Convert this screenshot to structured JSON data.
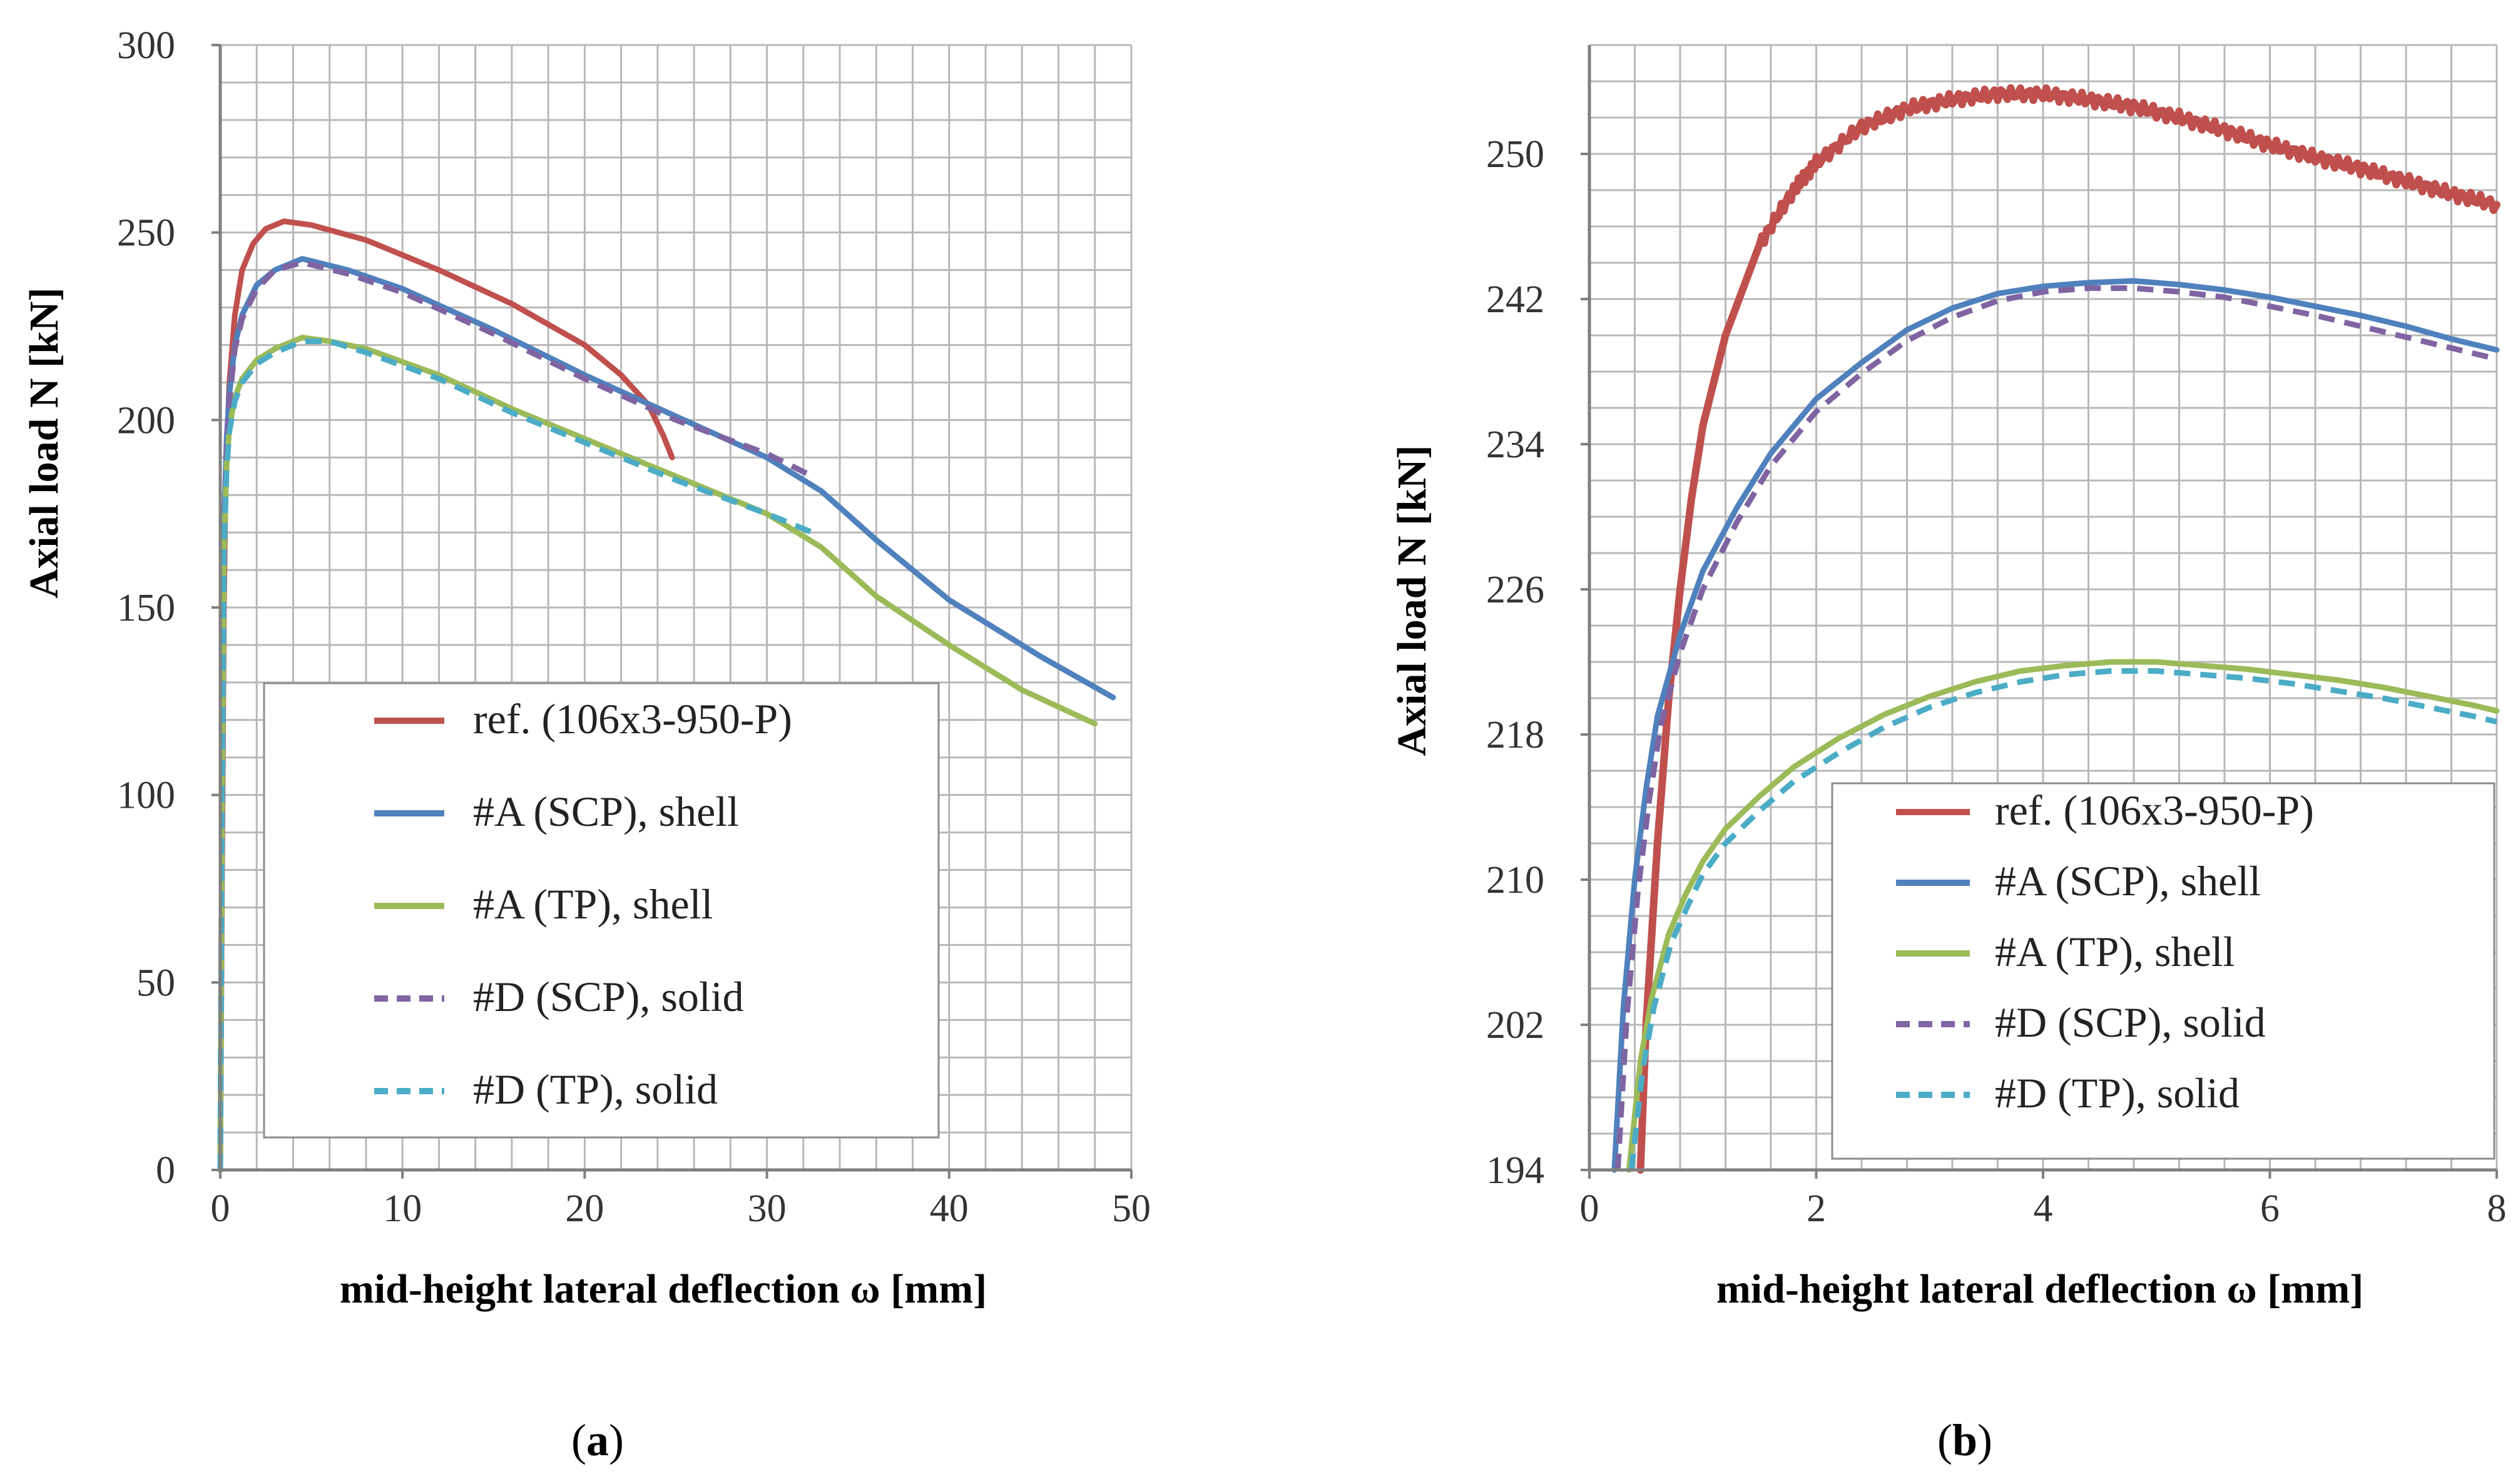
{
  "colors": {
    "ref": "#c0504d",
    "scp_shell": "#4f81bd",
    "tp_shell": "#9bbb59",
    "scp_solid": "#8064a2",
    "tp_solid": "#4bacc6",
    "grid": "#b8b8b8",
    "axis": "#7f7f7f"
  },
  "chart_data": [
    {
      "id": "a",
      "type": "line",
      "panel_label": {
        "open": "(",
        "letter": "a",
        "close": ")"
      },
      "xlabel": "mid-height lateral deflection ω [mm]",
      "ylabel": "Axial load N [kN]",
      "xlim": [
        0,
        50
      ],
      "ylim": [
        0,
        300
      ],
      "x_ticks": [
        0,
        10,
        20,
        30,
        40,
        50
      ],
      "y_ticks": [
        0,
        50,
        100,
        150,
        200,
        250,
        300
      ],
      "x_minor_step": 2,
      "y_minor_step": 10,
      "grid": true,
      "legend_position": "lower-center",
      "series": [
        {
          "key": "ref",
          "name": "ref. (106x3-950-P)",
          "dash": false,
          "x": [
            0,
            0.1,
            0.2,
            0.3,
            0.5,
            0.8,
            1.2,
            1.8,
            2.5,
            3.5,
            5,
            8,
            12,
            16,
            20,
            22,
            23.5,
            24.3,
            24.8
          ],
          "y": [
            0,
            80,
            150,
            185,
            210,
            228,
            240,
            247,
            251,
            253,
            252,
            248,
            240,
            231,
            220,
            212,
            204,
            196,
            190
          ]
        },
        {
          "key": "scp_shell",
          "name": "#A (SCP), shell",
          "dash": false,
          "x": [
            0,
            0.1,
            0.2,
            0.35,
            0.5,
            0.8,
            1.2,
            2,
            3,
            4.5,
            7,
            10,
            15,
            20,
            25,
            30,
            33,
            36,
            40,
            45,
            49
          ],
          "y": [
            0,
            100,
            170,
            195,
            207,
            220,
            228,
            236,
            240,
            243,
            240,
            235,
            224,
            212,
            201,
            190,
            181,
            168,
            152,
            137,
            126
          ]
        },
        {
          "key": "tp_shell",
          "name": "#A (TP), shell",
          "dash": false,
          "x": [
            0,
            0.1,
            0.2,
            0.35,
            0.5,
            0.8,
            1.2,
            2,
            3,
            4.5,
            6,
            8,
            12,
            16,
            20,
            25,
            30,
            33,
            36,
            40,
            44,
            48
          ],
          "y": [
            0,
            100,
            165,
            188,
            198,
            206,
            211,
            216,
            219,
            222,
            221,
            219,
            212,
            203,
            195,
            185,
            175,
            166,
            153,
            140,
            128,
            119
          ]
        },
        {
          "key": "scp_solid",
          "name": "#D (SCP), solid",
          "dash": true,
          "x": [
            0,
            0.1,
            0.2,
            0.35,
            0.5,
            0.8,
            1.2,
            2,
            3,
            4.5,
            7,
            10,
            15,
            20,
            25,
            30,
            32.5
          ],
          "y": [
            0,
            100,
            168,
            193,
            205,
            219,
            227,
            235,
            240,
            242,
            239,
            234,
            223,
            211,
            200,
            191,
            185
          ]
        },
        {
          "key": "tp_solid",
          "name": "#D (TP), solid",
          "dash": true,
          "x": [
            0,
            0.1,
            0.2,
            0.35,
            0.5,
            0.8,
            1.2,
            2,
            3,
            4.5,
            6,
            8,
            12,
            16,
            20,
            25,
            30,
            32.5
          ],
          "y": [
            0,
            100,
            164,
            187,
            197,
            205,
            210,
            215,
            218,
            221,
            221,
            218,
            211,
            202,
            194,
            184,
            175,
            170
          ]
        }
      ]
    },
    {
      "id": "b",
      "type": "line",
      "panel_label": {
        "open": "(",
        "letter": "b",
        "close": ")"
      },
      "xlabel": "mid-height lateral deflection ω [mm]",
      "ylabel": "Axial load N [kN]",
      "xlim": [
        0,
        8
      ],
      "ylim": [
        194,
        256
      ],
      "x_ticks": [
        0,
        2,
        4,
        6,
        8
      ],
      "y_ticks": [
        194,
        202,
        210,
        218,
        226,
        234,
        242,
        250
      ],
      "x_minor_step": 0.4,
      "y_minor_step": 2,
      "grid": true,
      "legend_position": "lower-right",
      "series": [
        {
          "key": "ref",
          "name": "ref. (106x3-950-P)",
          "dash": false,
          "noise": 0.7,
          "x": [
            0.45,
            0.5,
            0.6,
            0.7,
            0.8,
            0.9,
            1.0,
            1.2,
            1.5,
            1.8,
            2.0,
            2.4,
            2.8,
            3.2,
            3.6,
            4.0,
            4.4,
            4.8,
            5.2,
            5.6,
            6.0,
            6.4,
            6.8,
            7.2,
            7.6,
            8.0
          ],
          "y": [
            194,
            202,
            212,
            220,
            226,
            231,
            235,
            240,
            245,
            248,
            249.5,
            251.5,
            252.5,
            253,
            253.3,
            253.3,
            253,
            252.6,
            252,
            251.3,
            250.5,
            249.8,
            249.2,
            248.5,
            247.8,
            247.2
          ]
        },
        {
          "key": "scp_shell",
          "name": "#A (SCP), shell",
          "dash": false,
          "x": [
            0.22,
            0.3,
            0.4,
            0.5,
            0.6,
            0.8,
            1.0,
            1.3,
            1.6,
            2.0,
            2.4,
            2.8,
            3.2,
            3.6,
            4.0,
            4.4,
            4.8,
            5.2,
            5.6,
            6.0,
            6.4,
            6.8,
            7.2,
            7.6,
            8.0
          ],
          "y": [
            194,
            203,
            210,
            215,
            219,
            223.5,
            227,
            230.5,
            233.5,
            236.5,
            238.5,
            240.3,
            241.5,
            242.3,
            242.7,
            242.9,
            243,
            242.8,
            242.5,
            242.1,
            241.6,
            241.1,
            240.5,
            239.8,
            239.2
          ]
        },
        {
          "key": "tp_shell",
          "name": "#A (TP), shell",
          "dash": false,
          "x": [
            0.35,
            0.45,
            0.55,
            0.7,
            0.85,
            1.0,
            1.2,
            1.5,
            1.8,
            2.2,
            2.6,
            3.0,
            3.4,
            3.8,
            4.2,
            4.6,
            5.0,
            5.4,
            5.8,
            6.2,
            6.6,
            7.0,
            7.4,
            7.8,
            8.0
          ],
          "y": [
            194,
            200,
            203.5,
            207,
            209.2,
            211,
            212.8,
            214.6,
            216.2,
            217.8,
            219.1,
            220.1,
            220.9,
            221.5,
            221.8,
            222,
            222,
            221.8,
            221.6,
            221.3,
            221,
            220.6,
            220.1,
            219.6,
            219.3
          ]
        },
        {
          "key": "scp_solid",
          "name": "#D (SCP), solid",
          "dash": true,
          "x": [
            0.25,
            0.33,
            0.43,
            0.53,
            0.63,
            0.8,
            1.0,
            1.3,
            1.6,
            2.0,
            2.4,
            2.8,
            3.2,
            3.6,
            4.0,
            4.4,
            4.8,
            5.2,
            5.6,
            6.0,
            6.4,
            6.8,
            7.2,
            7.6,
            8.0
          ],
          "y": [
            194,
            202.5,
            209.5,
            214.5,
            218.5,
            222.5,
            226,
            229.7,
            232.8,
            235.8,
            237.9,
            239.7,
            241,
            241.9,
            242.4,
            242.6,
            242.6,
            242.4,
            242.1,
            241.6,
            241.1,
            240.5,
            239.9,
            239.3,
            238.7
          ]
        },
        {
          "key": "tp_solid",
          "name": "#D (TP), solid",
          "dash": true,
          "x": [
            0.37,
            0.47,
            0.57,
            0.72,
            0.87,
            1.0,
            1.2,
            1.5,
            1.8,
            2.2,
            2.6,
            3.0,
            3.4,
            3.8,
            4.2,
            4.6,
            5.0,
            5.4,
            5.8,
            6.2,
            6.6,
            7.0,
            7.4,
            7.8,
            8.0
          ],
          "y": [
            194,
            199.5,
            203,
            206.5,
            208.6,
            210.3,
            212,
            213.8,
            215.4,
            217,
            218.4,
            219.5,
            220.3,
            220.9,
            221.3,
            221.5,
            221.5,
            221.3,
            221.1,
            220.8,
            220.4,
            220,
            219.5,
            219,
            218.7
          ]
        }
      ]
    }
  ]
}
